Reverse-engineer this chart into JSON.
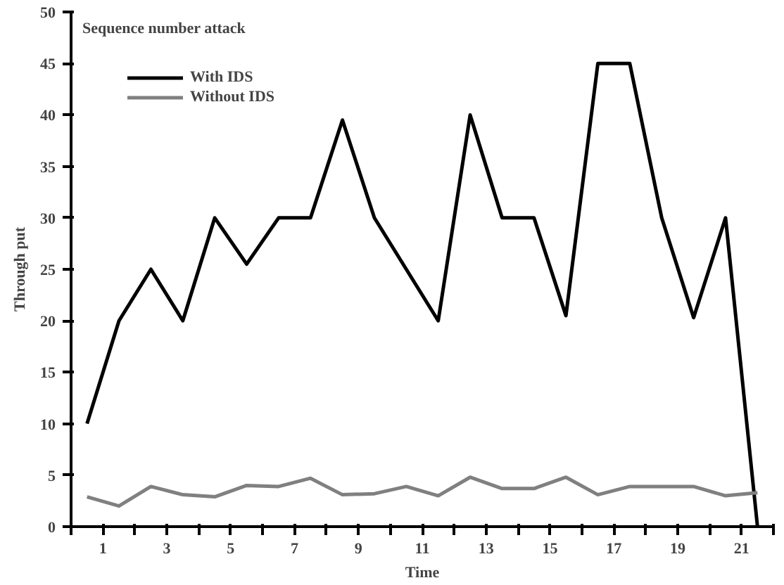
{
  "chart_data": {
    "type": "line",
    "title": "Sequence number attack",
    "xlabel": "Time",
    "ylabel": "Through put",
    "x": [
      0.5,
      1.5,
      2.5,
      3.5,
      4.5,
      5.5,
      6.5,
      7.5,
      8.5,
      9.5,
      10.5,
      11.5,
      12.5,
      13.5,
      14.5,
      15.5,
      16.5,
      17.5,
      18.5,
      19.5,
      20.5,
      21.5
    ],
    "series": [
      {
        "name": "With IDS",
        "color": "#000000",
        "values": [
          10,
          20,
          25,
          20,
          30,
          25.5,
          30,
          30,
          39.5,
          30,
          25,
          20,
          40,
          30,
          30,
          20.5,
          45,
          45,
          30,
          20.3,
          30,
          0
        ]
      },
      {
        "name": "Without IDS",
        "color": "#808080",
        "values": [
          2.9,
          2.0,
          3.9,
          3.1,
          2.9,
          4.0,
          3.9,
          4.7,
          3.1,
          3.2,
          3.9,
          3.0,
          4.8,
          3.7,
          3.7,
          4.8,
          3.1,
          3.9,
          3.9,
          3.9,
          3.0,
          3.3
        ]
      }
    ],
    "xlim": [
      0,
      22
    ],
    "xticks": [
      {
        "value": 0,
        "label": null
      },
      1,
      {
        "value": 2,
        "label": null
      },
      3,
      {
        "value": 4,
        "label": null
      },
      5,
      {
        "value": 6,
        "label": null
      },
      7,
      {
        "value": 8,
        "label": null
      },
      9,
      {
        "value": 10,
        "label": null
      },
      11,
      {
        "value": 12,
        "label": null
      },
      13,
      {
        "value": 14,
        "label": null
      },
      15,
      {
        "value": 16,
        "label": null
      },
      17,
      {
        "value": 18,
        "label": null
      },
      19,
      {
        "value": 20,
        "label": null
      },
      21,
      {
        "value": 22,
        "label": null
      }
    ],
    "ylim": [
      0,
      50
    ],
    "yticks": [
      0,
      5,
      10,
      15,
      20,
      25,
      30,
      35,
      40,
      45,
      50
    ],
    "grid": false,
    "legend": "top left",
    "marker": "none",
    "line_style": "solid"
  }
}
